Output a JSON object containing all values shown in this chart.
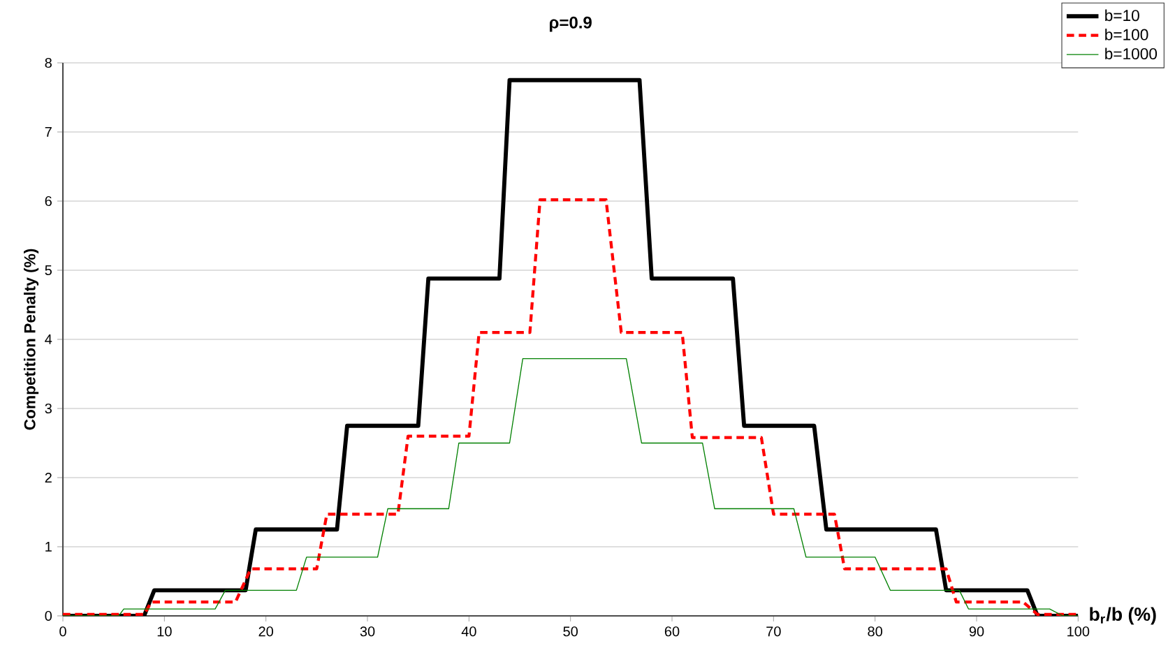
{
  "chart_data": {
    "type": "line",
    "title": "ρ=0.9",
    "xlabel": "b$_{r}$/b (%)",
    "ylabel": "Competition Penalty (%)",
    "xlim": [
      0,
      100
    ],
    "ylim": [
      0,
      8
    ],
    "xticks": [
      0,
      10,
      20,
      30,
      40,
      50,
      60,
      70,
      80,
      90,
      100
    ],
    "yticks": [
      0,
      1,
      2,
      3,
      4,
      5,
      6,
      7,
      8
    ],
    "grid": "y",
    "legend": "top right",
    "marker": "none",
    "series": [
      {
        "name": "b=10",
        "color": "#000000",
        "line_style": "solid",
        "x": [
          0,
          8,
          9,
          18,
          19,
          27,
          28,
          35,
          36,
          43,
          44,
          56.8,
          58,
          66,
          67.1,
          74,
          75.2,
          86,
          87,
          95,
          96,
          100
        ],
        "values": [
          0,
          0,
          0.37,
          0.37,
          1.25,
          1.25,
          2.75,
          2.75,
          4.88,
          4.88,
          7.75,
          7.75,
          4.88,
          4.88,
          2.75,
          2.75,
          1.25,
          1.25,
          0.37,
          0.37,
          0,
          0
        ]
      },
      {
        "name": "b=100",
        "color": "#ff0000",
        "line_style": "dashed",
        "x": [
          0,
          8,
          8.7,
          17,
          18.5,
          25,
          26,
          33,
          34,
          40,
          41,
          46,
          47,
          53.5,
          55,
          61,
          62,
          68.8,
          70,
          76,
          77,
          87,
          88,
          94.6,
          96,
          100
        ],
        "values": [
          0.02,
          0.02,
          0.2,
          0.2,
          0.68,
          0.68,
          1.47,
          1.47,
          2.6,
          2.6,
          4.1,
          4.1,
          6.02,
          6.02,
          4.1,
          4.1,
          2.58,
          2.58,
          1.47,
          1.47,
          0.68,
          0.68,
          0.2,
          0.2,
          0.02,
          0.02
        ]
      },
      {
        "name": "b=1000",
        "color": "#008000",
        "line_style": "solid",
        "x": [
          0,
          5.5,
          6,
          15,
          16,
          23,
          24,
          31,
          32,
          38,
          39,
          44,
          45.3,
          55.5,
          57,
          63,
          64.2,
          72,
          73.2,
          80,
          81.5,
          88.3,
          89.2,
          97.2,
          98.5,
          100
        ],
        "values": [
          0,
          0,
          0.1,
          0.1,
          0.37,
          0.37,
          0.85,
          0.85,
          1.55,
          1.55,
          2.5,
          2.5,
          3.72,
          3.72,
          2.5,
          2.5,
          1.55,
          1.55,
          0.85,
          0.85,
          0.37,
          0.37,
          0.1,
          0.1,
          0,
          0
        ]
      }
    ]
  }
}
